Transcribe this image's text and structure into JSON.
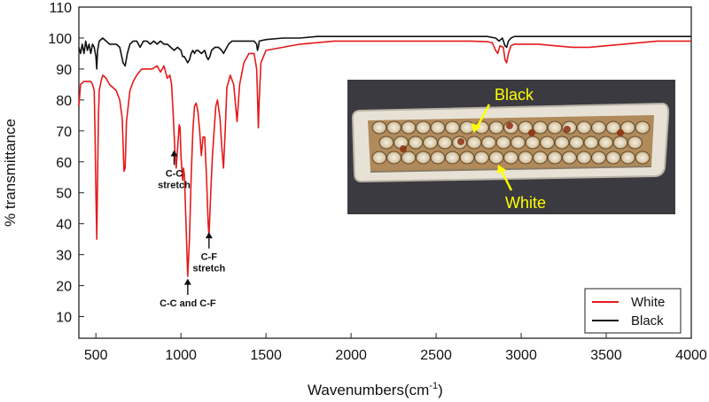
{
  "chart_data": {
    "type": "line",
    "title": "",
    "xlabel": "Wavenumbers(cm",
    "xlabel_sup": "-1",
    "xlabel_close": ")",
    "ylabel": "% transmittance",
    "xlim": [
      400,
      4000
    ],
    "ylim": [
      3,
      110
    ],
    "xticks": [
      500,
      1000,
      1500,
      2000,
      2500,
      3000,
      3500,
      4000
    ],
    "yticks": [
      10,
      20,
      30,
      40,
      50,
      60,
      70,
      80,
      90,
      100,
      110
    ],
    "grid": false,
    "legend_position": "bottom-right",
    "series": [
      {
        "name": "White",
        "color": "#e41a1c",
        "points": [
          [
            400,
            78
          ],
          [
            410,
            85
          ],
          [
            430,
            86
          ],
          [
            450,
            86
          ],
          [
            470,
            86
          ],
          [
            480,
            85
          ],
          [
            490,
            83
          ],
          [
            495,
            70
          ],
          [
            500,
            50
          ],
          [
            505,
            35
          ],
          [
            510,
            55
          ],
          [
            515,
            75
          ],
          [
            520,
            83
          ],
          [
            530,
            86
          ],
          [
            540,
            88
          ],
          [
            560,
            87
          ],
          [
            580,
            85
          ],
          [
            600,
            84
          ],
          [
            620,
            83
          ],
          [
            640,
            80
          ],
          [
            655,
            74
          ],
          [
            665,
            57
          ],
          [
            672,
            58
          ],
          [
            680,
            73
          ],
          [
            700,
            83
          ],
          [
            720,
            86
          ],
          [
            740,
            88
          ],
          [
            770,
            90
          ],
          [
            800,
            90
          ],
          [
            830,
            90
          ],
          [
            860,
            91
          ],
          [
            880,
            89
          ],
          [
            900,
            91
          ],
          [
            920,
            87
          ],
          [
            935,
            88
          ],
          [
            945,
            85
          ],
          [
            955,
            75
          ],
          [
            965,
            63
          ],
          [
            972,
            58
          ],
          [
            980,
            64
          ],
          [
            990,
            72
          ],
          [
            995,
            71
          ],
          [
            1000,
            62
          ],
          [
            1010,
            54
          ],
          [
            1015,
            58
          ],
          [
            1020,
            56
          ],
          [
            1030,
            40
          ],
          [
            1040,
            23
          ],
          [
            1050,
            35
          ],
          [
            1060,
            55
          ],
          [
            1070,
            70
          ],
          [
            1080,
            78
          ],
          [
            1090,
            79
          ],
          [
            1100,
            76
          ],
          [
            1110,
            70
          ],
          [
            1120,
            62
          ],
          [
            1130,
            68
          ],
          [
            1140,
            68
          ],
          [
            1150,
            55
          ],
          [
            1160,
            40
          ],
          [
            1165,
            36
          ],
          [
            1175,
            50
          ],
          [
            1185,
            62
          ],
          [
            1195,
            70
          ],
          [
            1205,
            78
          ],
          [
            1215,
            80
          ],
          [
            1230,
            74
          ],
          [
            1240,
            65
          ],
          [
            1250,
            58
          ],
          [
            1260,
            70
          ],
          [
            1270,
            84
          ],
          [
            1290,
            88
          ],
          [
            1310,
            85
          ],
          [
            1320,
            79
          ],
          [
            1330,
            73
          ],
          [
            1345,
            85
          ],
          [
            1370,
            92
          ],
          [
            1400,
            95
          ],
          [
            1430,
            95
          ],
          [
            1445,
            90
          ],
          [
            1450,
            82
          ],
          [
            1455,
            71
          ],
          [
            1460,
            80
          ],
          [
            1470,
            92
          ],
          [
            1500,
            96
          ],
          [
            1600,
            97
          ],
          [
            1700,
            98
          ],
          [
            1800,
            98.5
          ],
          [
            1900,
            99
          ],
          [
            2000,
            99
          ],
          [
            2100,
            99
          ],
          [
            2200,
            99
          ],
          [
            2300,
            99
          ],
          [
            2400,
            99
          ],
          [
            2500,
            99
          ],
          [
            2600,
            99
          ],
          [
            2700,
            99
          ],
          [
            2800,
            98.8
          ],
          [
            2830,
            98.5
          ],
          [
            2850,
            96
          ],
          [
            2862,
            95
          ],
          [
            2875,
            97.5
          ],
          [
            2895,
            97
          ],
          [
            2905,
            93
          ],
          [
            2915,
            92
          ],
          [
            2925,
            95
          ],
          [
            2940,
            97.5
          ],
          [
            2960,
            98
          ],
          [
            3000,
            98
          ],
          [
            3100,
            98
          ],
          [
            3200,
            97.5
          ],
          [
            3300,
            97
          ],
          [
            3400,
            97
          ],
          [
            3500,
            97.5
          ],
          [
            3600,
            98
          ],
          [
            3700,
            98.5
          ],
          [
            3800,
            99
          ],
          [
            3900,
            99
          ],
          [
            4000,
            99
          ]
        ]
      },
      {
        "name": "Black",
        "color": "#111111",
        "points": [
          [
            400,
            97
          ],
          [
            410,
            95
          ],
          [
            420,
            98
          ],
          [
            430,
            95
          ],
          [
            440,
            99
          ],
          [
            450,
            96
          ],
          [
            460,
            98
          ],
          [
            470,
            95
          ],
          [
            480,
            98
          ],
          [
            490,
            97
          ],
          [
            500,
            94
          ],
          [
            505,
            90
          ],
          [
            510,
            96
          ],
          [
            520,
            99
          ],
          [
            540,
            100
          ],
          [
            560,
            99
          ],
          [
            580,
            98
          ],
          [
            600,
            98
          ],
          [
            620,
            98
          ],
          [
            640,
            97
          ],
          [
            660,
            92
          ],
          [
            672,
            91
          ],
          [
            685,
            95
          ],
          [
            700,
            98
          ],
          [
            720,
            99
          ],
          [
            740,
            99
          ],
          [
            760,
            97
          ],
          [
            780,
            99
          ],
          [
            800,
            99
          ],
          [
            820,
            98
          ],
          [
            840,
            99
          ],
          [
            860,
            98
          ],
          [
            880,
            99
          ],
          [
            900,
            98
          ],
          [
            920,
            98
          ],
          [
            940,
            97
          ],
          [
            960,
            96
          ],
          [
            980,
            97
          ],
          [
            1000,
            96
          ],
          [
            1010,
            94
          ],
          [
            1020,
            94
          ],
          [
            1030,
            93
          ],
          [
            1040,
            92
          ],
          [
            1050,
            93
          ],
          [
            1060,
            95
          ],
          [
            1070,
            96
          ],
          [
            1080,
            95
          ],
          [
            1090,
            96
          ],
          [
            1100,
            96
          ],
          [
            1120,
            95
          ],
          [
            1140,
            96
          ],
          [
            1150,
            94
          ],
          [
            1160,
            93
          ],
          [
            1170,
            94
          ],
          [
            1180,
            96
          ],
          [
            1200,
            97
          ],
          [
            1220,
            97
          ],
          [
            1240,
            96
          ],
          [
            1250,
            95
          ],
          [
            1260,
            96
          ],
          [
            1280,
            98
          ],
          [
            1300,
            99
          ],
          [
            1320,
            99
          ],
          [
            1340,
            99
          ],
          [
            1360,
            99
          ],
          [
            1380,
            99
          ],
          [
            1400,
            99
          ],
          [
            1430,
            99
          ],
          [
            1445,
            98
          ],
          [
            1450,
            96
          ],
          [
            1455,
            97
          ],
          [
            1460,
            99
          ],
          [
            1500,
            99.5
          ],
          [
            1600,
            100
          ],
          [
            1700,
            100
          ],
          [
            1800,
            100.5
          ],
          [
            2000,
            100.5
          ],
          [
            2200,
            100.5
          ],
          [
            2400,
            100.5
          ],
          [
            2600,
            100.5
          ],
          [
            2800,
            100.5
          ],
          [
            2850,
            100
          ],
          [
            2870,
            99
          ],
          [
            2890,
            100
          ],
          [
            2905,
            97.5
          ],
          [
            2915,
            97
          ],
          [
            2925,
            99
          ],
          [
            2940,
            100
          ],
          [
            2960,
            100.5
          ],
          [
            3000,
            100.5
          ],
          [
            3200,
            100.5
          ],
          [
            3400,
            100.5
          ],
          [
            3600,
            100.5
          ],
          [
            3800,
            100.5
          ],
          [
            4000,
            100.5
          ]
        ]
      }
    ],
    "annotations": [
      {
        "id": "cc",
        "lines": [
          "C-C",
          "stretch"
        ],
        "arrow_x": 960,
        "arrow_tip_y": 63.5,
        "arrow_tail_y": 59
      },
      {
        "id": "cf",
        "lines": [
          "C-F",
          "stretch"
        ],
        "arrow_x": 1165,
        "arrow_tip_y": 37,
        "arrow_tail_y": 32
      },
      {
        "id": "cccf",
        "lines": [
          "C-C and C-F"
        ],
        "arrow_x": 1040,
        "arrow_tip_y": 22,
        "arrow_tail_y": 17
      }
    ],
    "inset_photo": {
      "labels": {
        "black": "Black",
        "white": "White"
      },
      "label_color": "#ffff00",
      "background_color": "#3a3a40",
      "boat_color": "#e8e2d6"
    }
  }
}
